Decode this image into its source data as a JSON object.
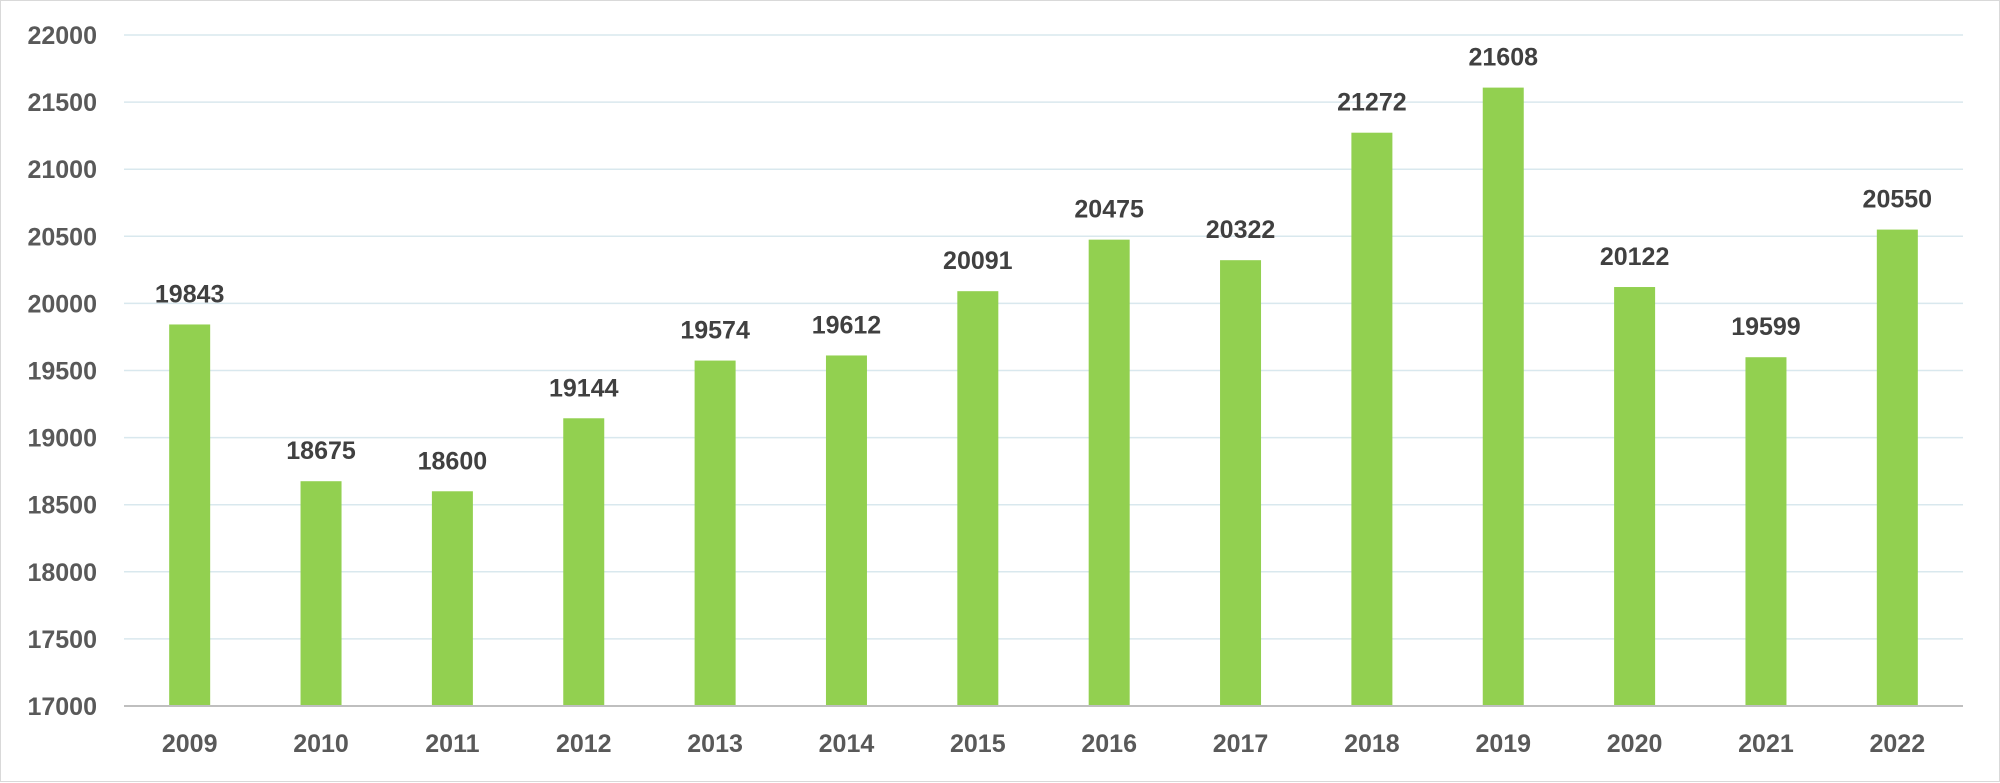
{
  "chart_data": {
    "type": "bar",
    "title": "",
    "xlabel": "",
    "ylabel": "",
    "categories": [
      "2009",
      "2010",
      "2011",
      "2012",
      "2013",
      "2014",
      "2015",
      "2016",
      "2017",
      "2018",
      "2019",
      "2020",
      "2021",
      "2022"
    ],
    "values": [
      19843,
      18675,
      18600,
      19144,
      19574,
      19612,
      20091,
      20475,
      20322,
      21272,
      21608,
      20122,
      19599,
      20550
    ],
    "ylim": [
      17000,
      22000
    ],
    "y_ticks": [
      17000,
      17500,
      18000,
      18500,
      19000,
      19500,
      20000,
      20500,
      21000,
      21500,
      22000
    ],
    "data_labels": true,
    "grid": "horizontal",
    "legend": "none",
    "colors": {
      "bar": "#92d050",
      "grid": "#d9e8ee",
      "axis": "#bfbfbf",
      "tick_text": "#595959",
      "data_label_text": "#404040"
    }
  }
}
